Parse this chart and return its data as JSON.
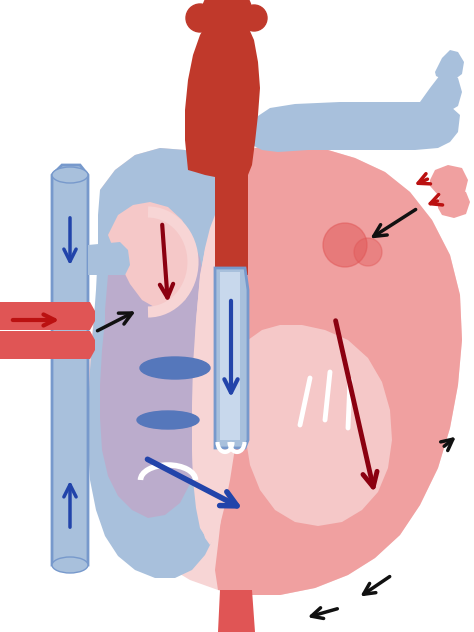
{
  "bg": "#ffffff",
  "red_dark": "#c0392b",
  "red_mid": "#e05555",
  "red_light": "#f0a0a0",
  "red_pale": "#f5c8c8",
  "pink_pale": "#f7d5d5",
  "blue_dark": "#5577bb",
  "blue_mid": "#7799cc",
  "blue_light": "#a8c0dc",
  "blue_pale": "#c8d8ec",
  "purple_mid": "#c0a8c8",
  "purple_light": "#d8c0d8",
  "arrow_blue": "#2244aa",
  "arrow_red": "#8b0010",
  "arrow_black": "#111111",
  "arrow_red2": "#bb1111",
  "white": "#ffffff",
  "figsize": [
    4.74,
    6.32
  ],
  "dpi": 100
}
